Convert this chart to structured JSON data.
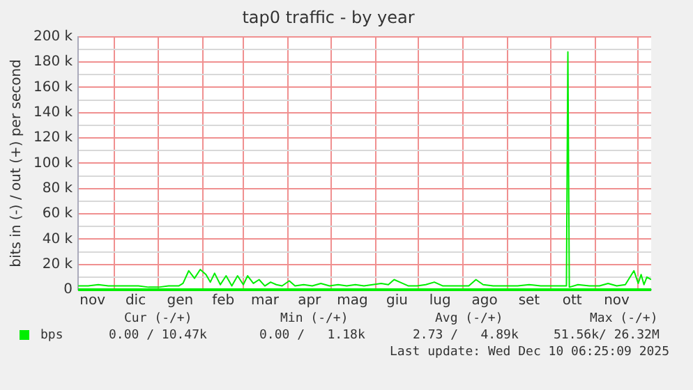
{
  "chart_data": {
    "type": "line",
    "title": "tap0 traffic - by year",
    "ylabel": "bits in (-) / out (+) per second",
    "x": [
      "2024-11-06",
      "2024-11-13",
      "2024-11-20",
      "2024-11-27",
      "2024-12-04",
      "2024-12-11",
      "2024-12-18",
      "2024-12-25",
      "2025-01-01",
      "2025-01-08",
      "2025-01-15",
      "2025-01-18",
      "2025-01-22",
      "2025-01-26",
      "2025-01-30",
      "2025-02-03",
      "2025-02-06",
      "2025-02-09",
      "2025-02-13",
      "2025-02-17",
      "2025-02-21",
      "2025-02-25",
      "2025-03-01",
      "2025-03-04",
      "2025-03-08",
      "2025-03-12",
      "2025-03-16",
      "2025-03-20",
      "2025-03-24",
      "2025-03-28",
      "2025-04-02",
      "2025-04-06",
      "2025-04-12",
      "2025-04-18",
      "2025-04-24",
      "2025-04-30",
      "2025-05-06",
      "2025-05-12",
      "2025-05-18",
      "2025-05-24",
      "2025-05-30",
      "2025-06-05",
      "2025-06-10",
      "2025-06-14",
      "2025-06-18",
      "2025-06-24",
      "2025-06-30",
      "2025-07-06",
      "2025-07-12",
      "2025-07-18",
      "2025-07-24",
      "2025-07-30",
      "2025-08-05",
      "2025-08-10",
      "2025-08-15",
      "2025-08-22",
      "2025-08-30",
      "2025-09-08",
      "2025-09-16",
      "2025-09-24",
      "2025-10-01",
      "2025-10-10",
      "2025-10-12",
      "2025-10-13",
      "2025-10-14",
      "2025-10-20",
      "2025-10-28",
      "2025-11-04",
      "2025-11-10",
      "2025-11-16",
      "2025-11-22",
      "2025-11-28",
      "2025-12-01",
      "2025-12-03",
      "2025-12-05",
      "2025-12-07",
      "2025-12-10"
    ],
    "series": [
      {
        "name": "bps",
        "color": "#00ee00",
        "values": [
          3000,
          3000,
          4000,
          3000,
          3000,
          3000,
          3000,
          2000,
          2000,
          3000,
          3000,
          5000,
          15000,
          9000,
          16000,
          12000,
          6000,
          13000,
          4000,
          11000,
          3000,
          11000,
          4000,
          11000,
          5000,
          8000,
          3000,
          6000,
          4000,
          3000,
          7000,
          3000,
          4000,
          3000,
          5000,
          3000,
          4000,
          3000,
          4000,
          3000,
          4000,
          5000,
          4000,
          8000,
          6000,
          3000,
          3000,
          4000,
          6000,
          3000,
          3000,
          3000,
          3000,
          8000,
          4000,
          3000,
          3000,
          3000,
          4000,
          3000,
          3000,
          3000,
          3000,
          188000,
          2000,
          4000,
          3000,
          3000,
          5000,
          3000,
          4000,
          15000,
          5000,
          12000,
          4000,
          10000,
          8000
        ]
      }
    ],
    "xlim": [
      "2024-11-06",
      "2025-12-10"
    ],
    "xticks": [
      {
        "value": "2024-11-16",
        "label": "nov"
      },
      {
        "value": "2024-12-01",
        "label": null
      },
      {
        "value": "2024-12-16",
        "label": "dic"
      },
      {
        "value": "2025-01-01",
        "label": null
      },
      {
        "value": "2025-01-16",
        "label": "gen"
      },
      {
        "value": "2025-02-01",
        "label": null
      },
      {
        "value": "2025-02-15",
        "label": "feb"
      },
      {
        "value": "2025-03-01",
        "label": null
      },
      {
        "value": "2025-03-16",
        "label": "mar"
      },
      {
        "value": "2025-04-01",
        "label": null
      },
      {
        "value": "2025-04-16",
        "label": "apr"
      },
      {
        "value": "2025-05-01",
        "label": null
      },
      {
        "value": "2025-05-16",
        "label": "mag"
      },
      {
        "value": "2025-06-01",
        "label": null
      },
      {
        "value": "2025-06-16",
        "label": "giu"
      },
      {
        "value": "2025-07-01",
        "label": null
      },
      {
        "value": "2025-07-16",
        "label": "lug"
      },
      {
        "value": "2025-08-01",
        "label": null
      },
      {
        "value": "2025-08-16",
        "label": "ago"
      },
      {
        "value": "2025-09-01",
        "label": null
      },
      {
        "value": "2025-09-16",
        "label": "set"
      },
      {
        "value": "2025-10-01",
        "label": null
      },
      {
        "value": "2025-10-16",
        "label": "ott"
      },
      {
        "value": "2025-11-01",
        "label": null
      },
      {
        "value": "2025-11-16",
        "label": "nov"
      },
      {
        "value": "2025-12-01",
        "label": null
      }
    ],
    "ylim": [
      0,
      200000
    ],
    "yticks": [
      0,
      {
        "value": 10000,
        "label": null
      },
      {
        "value": 20000,
        "label": "20 k"
      },
      {
        "value": 30000,
        "label": null
      },
      {
        "value": 40000,
        "label": "40 k"
      },
      {
        "value": 50000,
        "label": null
      },
      {
        "value": 60000,
        "label": "60 k"
      },
      {
        "value": 70000,
        "label": null
      },
      {
        "value": 80000,
        "label": "80 k"
      },
      {
        "value": 90000,
        "label": null
      },
      {
        "value": 100000,
        "label": "100 k"
      },
      {
        "value": 110000,
        "label": null
      },
      {
        "value": 120000,
        "label": "120 k"
      },
      {
        "value": 130000,
        "label": null
      },
      {
        "value": 140000,
        "label": "140 k"
      },
      {
        "value": 150000,
        "label": null
      },
      {
        "value": 160000,
        "label": "160 k"
      },
      {
        "value": 170000,
        "label": null
      },
      {
        "value": 180000,
        "label": "180 k"
      },
      {
        "value": 190000,
        "label": null
      },
      {
        "value": 200000,
        "label": "200 k"
      }
    ],
    "ref_lines": [
      {
        "axis": "y",
        "value": 0,
        "color": "#00ee00"
      }
    ],
    "grid": true,
    "legend": "bottom",
    "marker": "none",
    "line_style": "solid",
    "annotations": [
      "Cur (-/+)",
      "Min (-/+)",
      "Avg (-/+)",
      "Max (-/+)",
      "0.00 / 10.47k",
      "0.00 /   1.18k",
      "2.73 /   4.89k",
      "51.56k/ 26.32M",
      "Last update: Wed Dec 10 06:25:09 2025"
    ]
  }
}
